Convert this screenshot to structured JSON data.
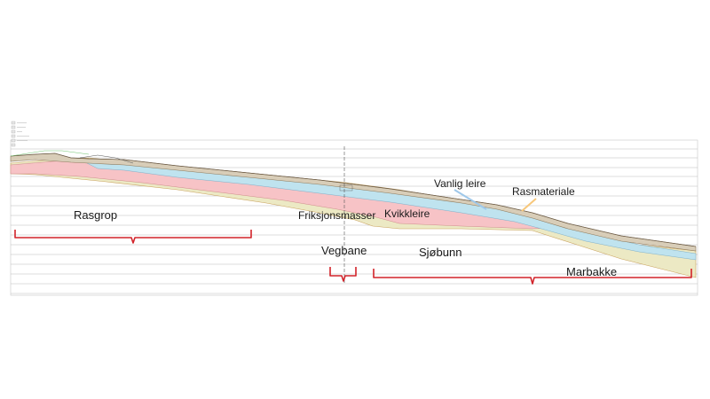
{
  "labels": {
    "rasgrop": "Rasgrop",
    "friksjonsmasser": "Friksjonsmasser",
    "kvikkleire": "Kvikkleire",
    "vanlig_leire": "Vanlig leire",
    "rasmateriale": "Rasmateriale",
    "vegbane": "Vegbane",
    "sjobunn": "Sjøbunn",
    "marbakke": "Marbakke"
  },
  "colors": {
    "kvikkleire": "#f7c3c6",
    "friksjonsmasser": "#ece9c4",
    "vanlig_leire": "#bfe3ef",
    "rasmateriale": "#d8cdb8",
    "bracket": "#d2232a",
    "arrow_blue": "#9fc8ea",
    "arrow_orange": "#f7c77a",
    "gridline": "#b9b9b9"
  },
  "legend_swatches": 6
}
